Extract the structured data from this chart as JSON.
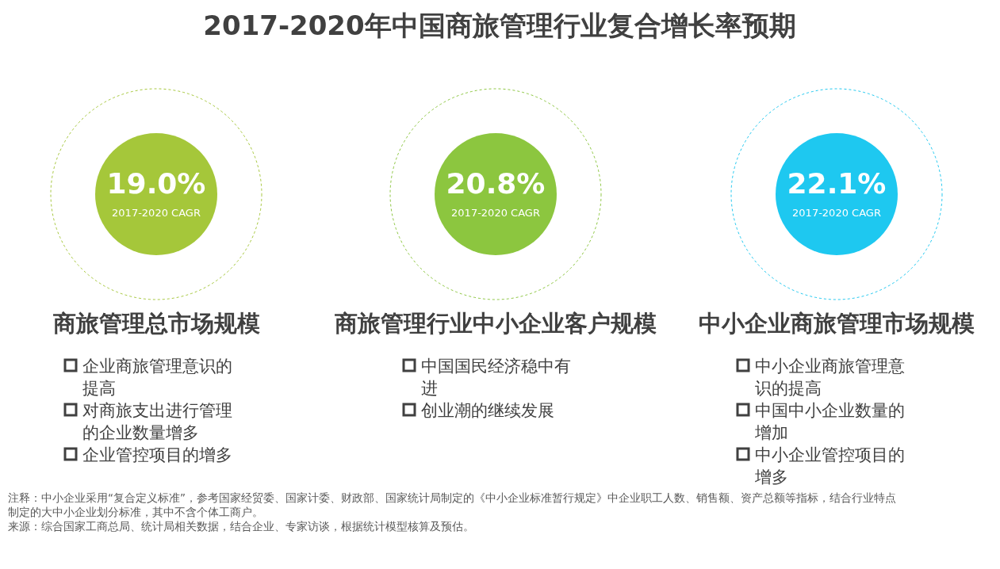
{
  "chart_data": [
    {
      "type": "other",
      "title": "2017-2020年中国商旅管理行业复合增长率预期",
      "annotations": [
        "注释：中小企业采用“复合定义标准”，参考国家经贸委、国家计委、财政部、国家统计局制定的《中小企业标准暂行规定》中企业职工人数、销售额、资产总额等指标，结合行业特点制定的大中小企业划分标准，其中不含个体工商户。",
        "来源：综合国家工商总局、统计局相关数据，结合企业、专家访谈，根据统计模型核算及预估。"
      ]
    },
    {
      "type": "other",
      "title": "商旅管理总市场规模",
      "subtitle": "2017-2020  CAGR",
      "values": [
        19.0
      ],
      "value_labels": [
        "19.0%"
      ],
      "colors": [
        "#a5c73a"
      ],
      "annotations": [
        "企业商旅管理意识的提高",
        "对商旅支出进行管理的企业数量增多",
        "企业管控项目的增多"
      ]
    },
    {
      "type": "other",
      "title": "商旅管理行业中小企业客户规模",
      "subtitle": "2017-2020  CAGR",
      "values": [
        20.8
      ],
      "value_labels": [
        "20.8%"
      ],
      "colors": [
        "#8cc63f"
      ],
      "annotations": [
        "中国国民经济稳中有进",
        "创业潮的继续发展"
      ]
    },
    {
      "type": "other",
      "title": "中小企业商旅管理市场规模",
      "subtitle": "2017-2020  CAGR",
      "values": [
        22.1
      ],
      "value_labels": [
        "22.1%"
      ],
      "colors": [
        "#1ec8f0"
      ],
      "annotations": [
        "中小企业商旅管理意识的提高",
        "中国中小企业数量的增加",
        "中小企业管控项目的增多"
      ]
    }
  ]
}
